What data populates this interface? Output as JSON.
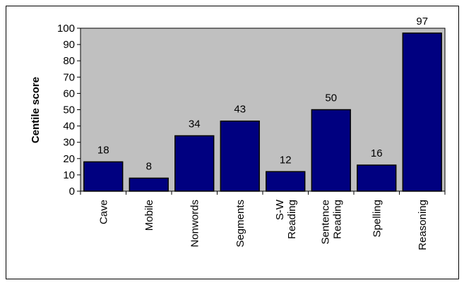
{
  "chart_data": {
    "type": "bar",
    "categories": [
      [
        "Cave"
      ],
      [
        "Mobile"
      ],
      [
        "Nonwords"
      ],
      [
        "Segments"
      ],
      [
        "S-W",
        "Reading"
      ],
      [
        "Sentence",
        "Reading"
      ],
      [
        "Spelling"
      ],
      [
        "Reasoning"
      ]
    ],
    "values": [
      18,
      8,
      34,
      43,
      12,
      50,
      16,
      97
    ],
    "data_labels": [
      "18",
      "8",
      "34",
      "43",
      "12",
      "50",
      "16",
      "97"
    ],
    "title": "",
    "xlabel": "",
    "ylabel": "Centile score",
    "ylim": [
      0,
      100
    ],
    "yticks": [
      0,
      10,
      20,
      30,
      40,
      50,
      60,
      70,
      80,
      90,
      100
    ],
    "ytick_labels": [
      "0",
      "10",
      "20",
      "30",
      "40",
      "50",
      "60",
      "70",
      "80",
      "90",
      "100"
    ],
    "grid": false,
    "legend": "none",
    "colors": {
      "bar": "#000080",
      "plot_background": "#C0C0C0",
      "outline": "#000000",
      "page_background": "#FFFFFF"
    }
  }
}
